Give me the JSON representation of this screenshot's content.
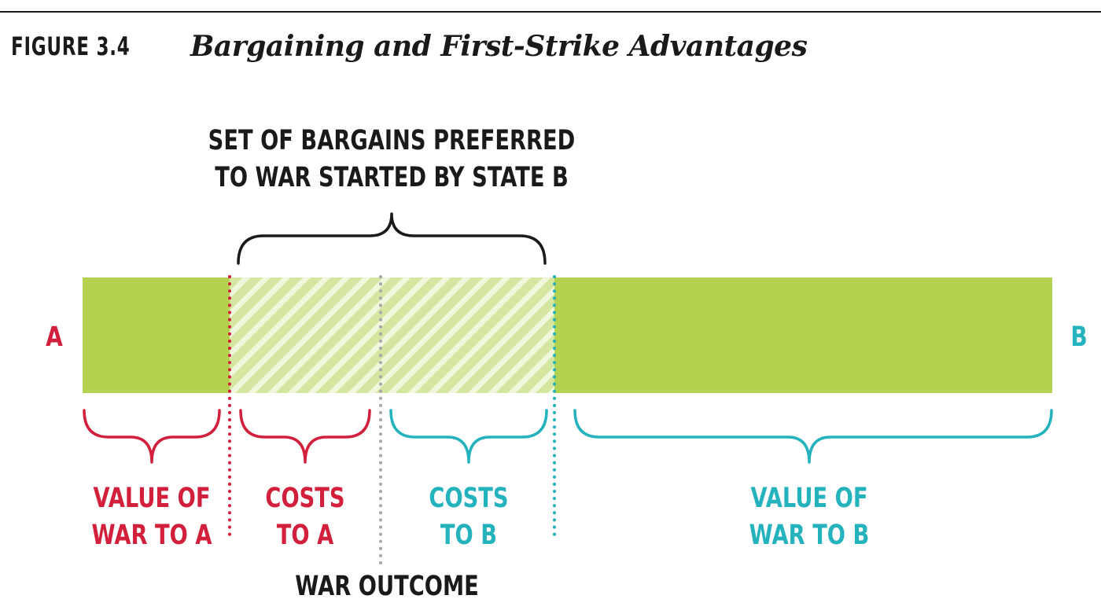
{
  "header": {
    "figure_label": "FIGURE 3.4",
    "title": "Bargaining and First-Strike Advantages"
  },
  "diagram": {
    "top_label_line1": "SET OF BARGAINS PREFERRED",
    "top_label_line2": "TO WAR STARTED BY STATE B",
    "end_left": "A",
    "end_right": "B",
    "segments": [
      {
        "line1": "VALUE OF",
        "line2": "WAR TO A"
      },
      {
        "line1": "COSTS",
        "line2": "TO A"
      },
      {
        "line1": "COSTS",
        "line2": "TO B"
      },
      {
        "line1": "VALUE OF",
        "line2": "WAR TO B"
      }
    ],
    "war_outcome_label": "WAR OUTCOME"
  },
  "colors": {
    "bar": "#b3d24f",
    "state_a": "#d21f3c",
    "state_b": "#24b3bd",
    "outcome_line": "#a8a8a8",
    "text": "#1a1a1a"
  }
}
